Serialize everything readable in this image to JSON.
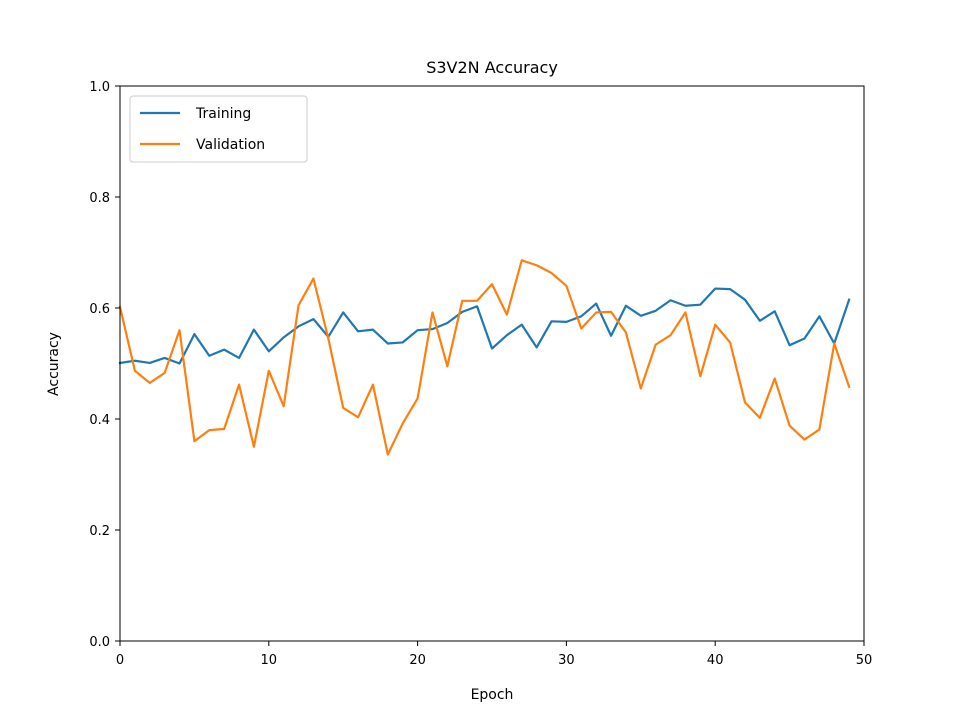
{
  "chart_data": {
    "type": "line",
    "title": "S3V2N Accuracy",
    "xlabel": "Epoch",
    "ylabel": "Accuracy",
    "xlim": [
      0,
      50
    ],
    "ylim": [
      0.0,
      1.0
    ],
    "xticks": [
      0,
      10,
      20,
      30,
      40,
      50
    ],
    "yticks": [
      0.0,
      0.2,
      0.4,
      0.6,
      0.8,
      1.0
    ],
    "ytick_labels": [
      "0.0",
      "0.2",
      "0.4",
      "0.6",
      "0.8",
      "1.0"
    ],
    "grid": false,
    "legend_position": "upper-left",
    "x": [
      0,
      1,
      2,
      3,
      4,
      5,
      6,
      7,
      8,
      9,
      10,
      11,
      12,
      13,
      14,
      15,
      16,
      17,
      18,
      19,
      20,
      21,
      22,
      23,
      24,
      25,
      26,
      27,
      28,
      29,
      30,
      31,
      32,
      33,
      34,
      35,
      36,
      37,
      38,
      39,
      40,
      41,
      42,
      43,
      44,
      45,
      46,
      47,
      48,
      49
    ],
    "series": [
      {
        "name": "Training",
        "color": "#1f77b4",
        "values": [
          0.501,
          0.505,
          0.501,
          0.51,
          0.5,
          0.553,
          0.514,
          0.525,
          0.51,
          0.561,
          0.522,
          0.547,
          0.567,
          0.58,
          0.548,
          0.592,
          0.558,
          0.561,
          0.536,
          0.538,
          0.56,
          0.562,
          0.573,
          0.593,
          0.603,
          0.527,
          0.551,
          0.57,
          0.529,
          0.576,
          0.575,
          0.585,
          0.608,
          0.55,
          0.604,
          0.586,
          0.595,
          0.614,
          0.604,
          0.606,
          0.635,
          0.634,
          0.615,
          0.577,
          0.594,
          0.533,
          0.545,
          0.585,
          0.536,
          0.615
        ]
      },
      {
        "name": "Validation",
        "color": "#ff7f0e",
        "values": [
          0.602,
          0.487,
          0.465,
          0.483,
          0.56,
          0.36,
          0.38,
          0.382,
          0.462,
          0.35,
          0.487,
          0.423,
          0.605,
          0.653,
          0.545,
          0.42,
          0.403,
          0.462,
          0.336,
          0.392,
          0.437,
          0.592,
          0.495,
          0.613,
          0.613,
          0.643,
          0.588,
          0.686,
          0.677,
          0.663,
          0.64,
          0.563,
          0.592,
          0.593,
          0.556,
          0.455,
          0.534,
          0.551,
          0.592,
          0.477,
          0.57,
          0.538,
          0.43,
          0.402,
          0.473,
          0.388,
          0.363,
          0.381,
          0.536,
          0.458
        ]
      }
    ]
  }
}
